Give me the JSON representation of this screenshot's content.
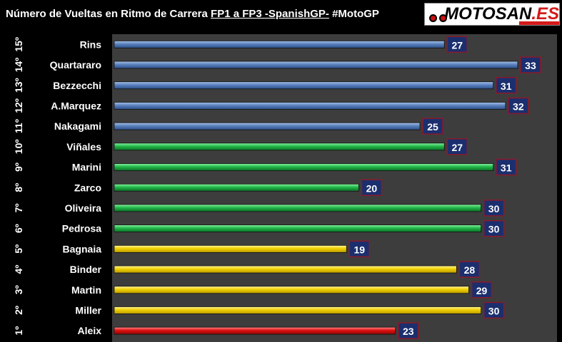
{
  "header": {
    "title_part1": "Número de Vueltas en Ritmo de Carrera ",
    "title_part2": "FP1 a FP3 -SpanishGP-",
    "title_part3": " #MotoGP",
    "logo_text": "MOTOSAN",
    "logo_suffix": ".ES"
  },
  "colors": {
    "background": "#000000",
    "plot_background": "#3d3d3d",
    "label_box": "#1b2f6e",
    "label_border": "#8b1a2a",
    "blue_bar": "#5b82be",
    "green_bar": "#22b84a",
    "yellow_bar": "#f0d000",
    "red_bar": "#e01010"
  },
  "chart_data": {
    "type": "bar",
    "orientation": "horizontal",
    "title": "Número de Vueltas en Ritmo de Carrera FP1 a FP3 -SpanishGP- #MotoGP",
    "grid": false,
    "ranks": [
      "15º",
      "14º",
      "13º",
      "12º",
      "11º",
      "10º",
      "9º",
      "8º",
      "7º",
      "6º",
      "5º",
      "4º",
      "3º",
      "2º",
      "1º"
    ],
    "categories": [
      "Rins",
      "Quartararo",
      "Bezzecchi",
      "A.Marquez",
      "Nakagami",
      "Viñales",
      "Marini",
      "Zarco",
      "Oliveira",
      "Pedrosa",
      "Bagnaia",
      "Binder",
      "Martin",
      "Miller",
      "Aleix"
    ],
    "values": [
      27,
      33,
      31,
      32,
      25,
      27,
      31,
      20,
      30,
      30,
      19,
      28,
      29,
      30,
      23
    ],
    "bar_colors": [
      "blue",
      "blue",
      "blue",
      "blue",
      "blue",
      "green",
      "green",
      "green",
      "green",
      "green",
      "yellow",
      "yellow",
      "yellow",
      "yellow",
      "red"
    ],
    "xlim": [
      0,
      36
    ]
  }
}
